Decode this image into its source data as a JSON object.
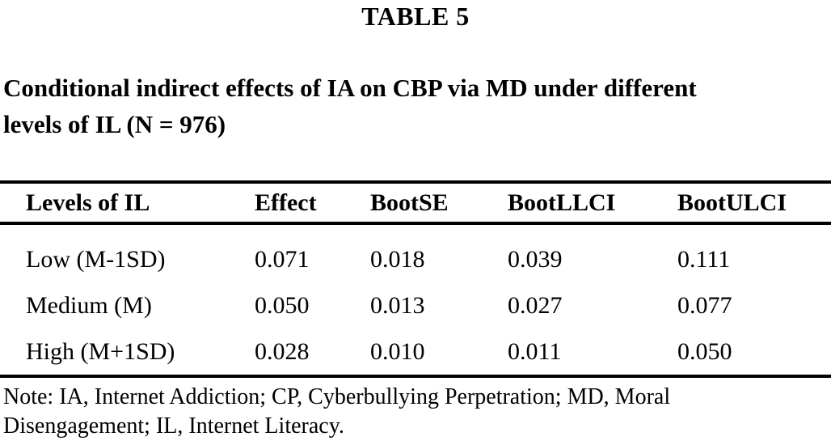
{
  "table_label": "TABLE 5",
  "caption": {
    "line1": "Conditional indirect effects of IA on CBP via MD under different",
    "line2": "levels of IL (N = 976)"
  },
  "table": {
    "columns": [
      "Levels of IL",
      "Effect",
      "BootSE",
      "BootLLCI",
      "BootULCI"
    ],
    "rows": [
      {
        "level": "Low (M-1SD)",
        "effect": "0.071",
        "boot_se": "0.018",
        "boot_llci": "0.039",
        "boot_ulci": "0.111"
      },
      {
        "level": "Medium (M)",
        "effect": "0.050",
        "boot_se": "0.013",
        "boot_llci": "0.027",
        "boot_ulci": "0.077"
      },
      {
        "level": "High (M+1SD)",
        "effect": "0.028",
        "boot_se": "0.010",
        "boot_llci": "0.011",
        "boot_ulci": "0.050"
      }
    ]
  },
  "note": {
    "line1": "Note: IA, Internet Addiction; CP, Cyberbullying Perpetration; MD, Moral",
    "line2": "Disengagement; IL, Internet Literacy."
  },
  "colors": {
    "text": "#000000",
    "background": "#ffffff",
    "rule": "#000000"
  }
}
